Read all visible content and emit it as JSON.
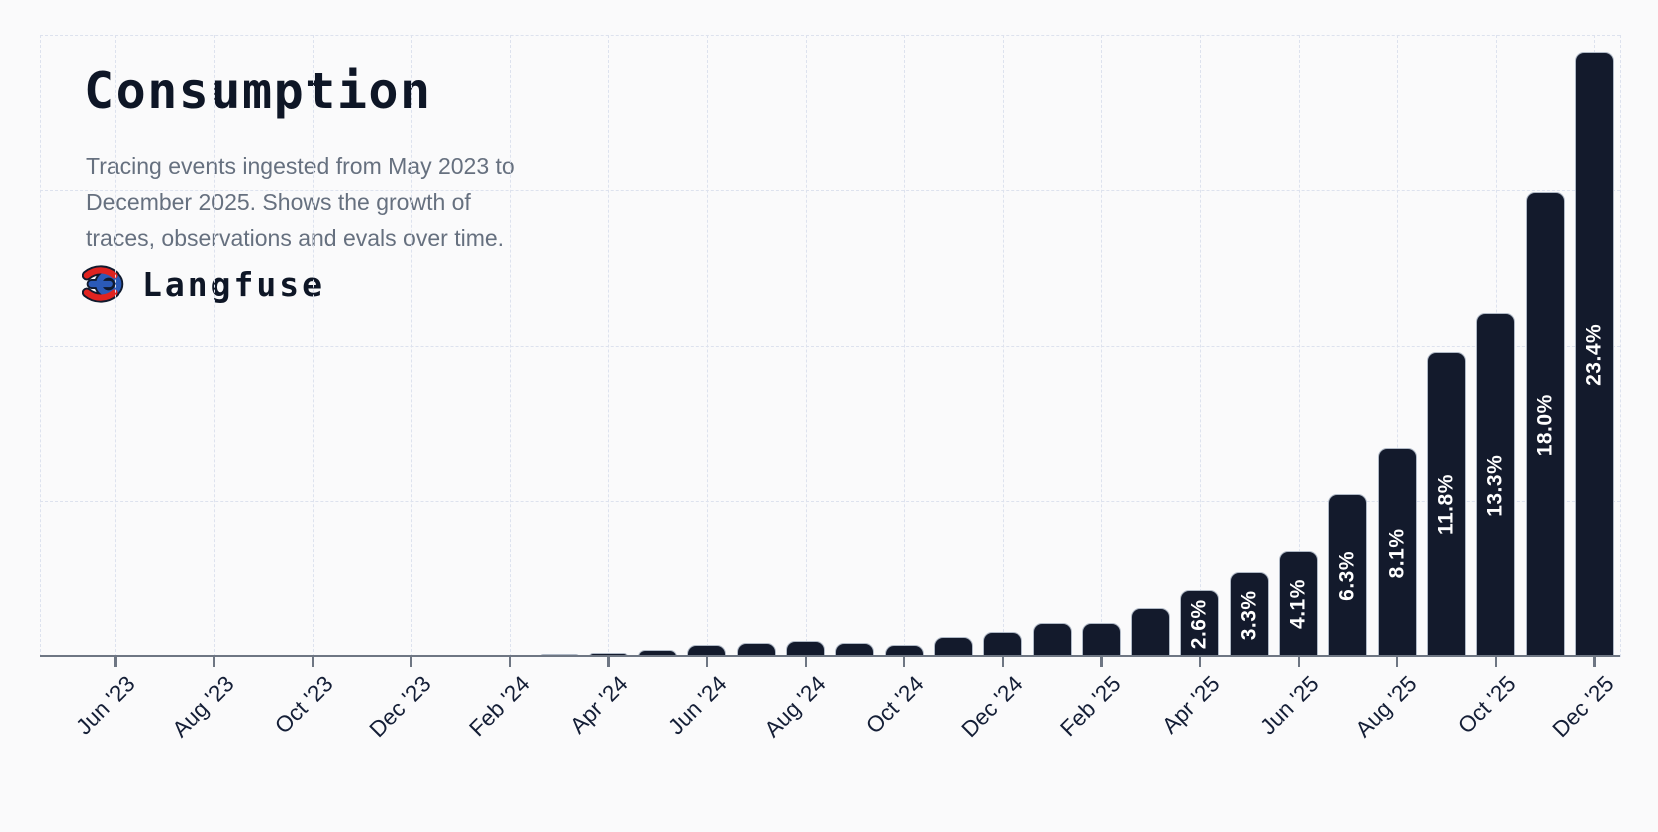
{
  "page": {
    "background": "#fafafb"
  },
  "header": {
    "title": "Consumption",
    "subtitle_lines": [
      "Tracing events ingested from May 2023 to",
      "December 2025. Shows the growth of",
      "traces, observations and evals over time."
    ],
    "brand": {
      "name": "Langfuse",
      "icon": "langfuse-knot-icon"
    }
  },
  "chart_data": {
    "type": "bar",
    "title": "Consumption",
    "xlabel": "",
    "ylabel": "",
    "x_range": [
      "May 2023",
      "December 2025"
    ],
    "x_tick_interval_months": 2,
    "x_tick_labels": [
      "Jun '23",
      "Aug '23",
      "Oct '23",
      "Dec '23",
      "Feb '24",
      "Apr '24",
      "Jun '24",
      "Aug '24",
      "Oct '24",
      "Dec '24",
      "Feb '25",
      "Apr '25",
      "Jun '25",
      "Aug '25",
      "Oct '25",
      "Dec '25"
    ],
    "grid": "dashed vertical at every tick, dashed horizontal levels, no y tick labels",
    "legend": "none",
    "bars": [
      {
        "month": "May '23",
        "pct": 0.0,
        "label": ""
      },
      {
        "month": "Jun '23",
        "pct": 0.0,
        "label": ""
      },
      {
        "month": "Jul '23",
        "pct": 0.01,
        "label": ""
      },
      {
        "month": "Aug '23",
        "pct": 0.01,
        "label": ""
      },
      {
        "month": "Sep '23",
        "pct": 0.02,
        "label": ""
      },
      {
        "month": "Oct '23",
        "pct": 0.02,
        "label": ""
      },
      {
        "month": "Nov '23",
        "pct": 0.03,
        "label": ""
      },
      {
        "month": "Dec '23",
        "pct": 0.05,
        "label": ""
      },
      {
        "month": "Jan '24",
        "pct": 0.06,
        "label": ""
      },
      {
        "month": "Feb '24",
        "pct": 0.08,
        "label": ""
      },
      {
        "month": "Mar '24",
        "pct": 0.1,
        "label": ""
      },
      {
        "month": "Apr '24",
        "pct": 0.14,
        "label": ""
      },
      {
        "month": "May '24",
        "pct": 0.27,
        "label": ""
      },
      {
        "month": "Jun '24",
        "pct": 0.48,
        "label": ""
      },
      {
        "month": "Jul '24",
        "pct": 0.55,
        "label": ""
      },
      {
        "month": "Aug '24",
        "pct": 0.62,
        "label": ""
      },
      {
        "month": "Sep '24",
        "pct": 0.55,
        "label": ""
      },
      {
        "month": "Oct '24",
        "pct": 0.46,
        "label": ""
      },
      {
        "month": "Nov '24",
        "pct": 0.77,
        "label": ""
      },
      {
        "month": "Dec '24",
        "pct": 0.95,
        "label": ""
      },
      {
        "month": "Jan '25",
        "pct": 1.3,
        "label": ""
      },
      {
        "month": "Feb '25",
        "pct": 1.3,
        "label": ""
      },
      {
        "month": "Mar '25",
        "pct": 1.9,
        "label": ""
      },
      {
        "month": "Apr '25",
        "pct": 2.6,
        "label": "2.6%"
      },
      {
        "month": "May '25",
        "pct": 3.3,
        "label": "3.3%"
      },
      {
        "month": "Jun '25",
        "pct": 4.1,
        "label": "4.1%"
      },
      {
        "month": "Jul '25",
        "pct": 6.3,
        "label": "6.3%"
      },
      {
        "month": "Aug '25",
        "pct": 8.1,
        "label": "8.1%"
      },
      {
        "month": "Sep '25",
        "pct": 11.8,
        "label": "11.8%"
      },
      {
        "month": "Oct '25",
        "pct": 13.3,
        "label": "13.3%"
      },
      {
        "month": "Nov '25",
        "pct": 18.0,
        "label": "18.0%"
      },
      {
        "month": "Dec '25",
        "pct": 23.4,
        "label": "23.4%"
      }
    ]
  },
  "colors": {
    "background": "#fafafb",
    "bar_fill": "#131a2c",
    "bar_stroke": "#b0b9c6",
    "bar_label_text": "#ffffff",
    "grid": "#dde2ee",
    "axis": "#6e7683",
    "title_text": "#0e1626",
    "subtitle_text": "#66707f",
    "tick_label_text": "#141e36",
    "logo_red": "#e02320",
    "logo_blue": "#2b5ab8",
    "logo_outline": "#101a2e"
  }
}
